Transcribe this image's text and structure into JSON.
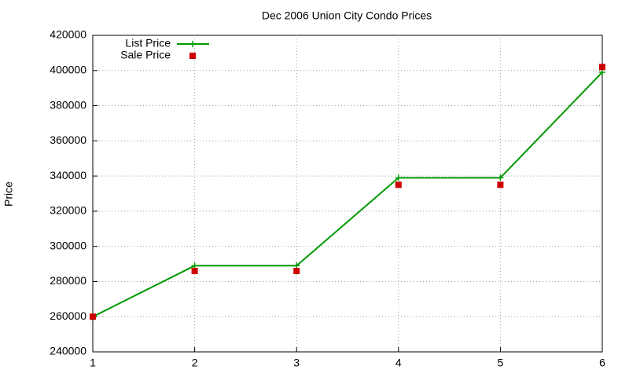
{
  "chart_data": {
    "type": "line",
    "title": "Dec 2006 Union City Condo Prices",
    "y_label": "Price",
    "x": [
      1,
      2,
      3,
      4,
      5,
      6
    ],
    "series": [
      {
        "name": "List Price",
        "color": "#009900",
        "style": "linespoints",
        "values": [
          260000,
          289000,
          289000,
          339000,
          339000,
          399000
        ]
      },
      {
        "name": "Sale Price",
        "color": "#cc0000",
        "style": "points",
        "values": [
          260000,
          286000,
          286000,
          335000,
          335000,
          402000
        ]
      }
    ],
    "xlim": [
      1,
      6
    ],
    "xticks": [
      1,
      2,
      3,
      4,
      5,
      6
    ],
    "ylim": [
      240000,
      420000
    ],
    "yticks": [
      240000,
      260000,
      280000,
      300000,
      320000,
      340000,
      360000,
      380000,
      400000,
      420000
    ],
    "grid": true,
    "legend": "top-left"
  }
}
